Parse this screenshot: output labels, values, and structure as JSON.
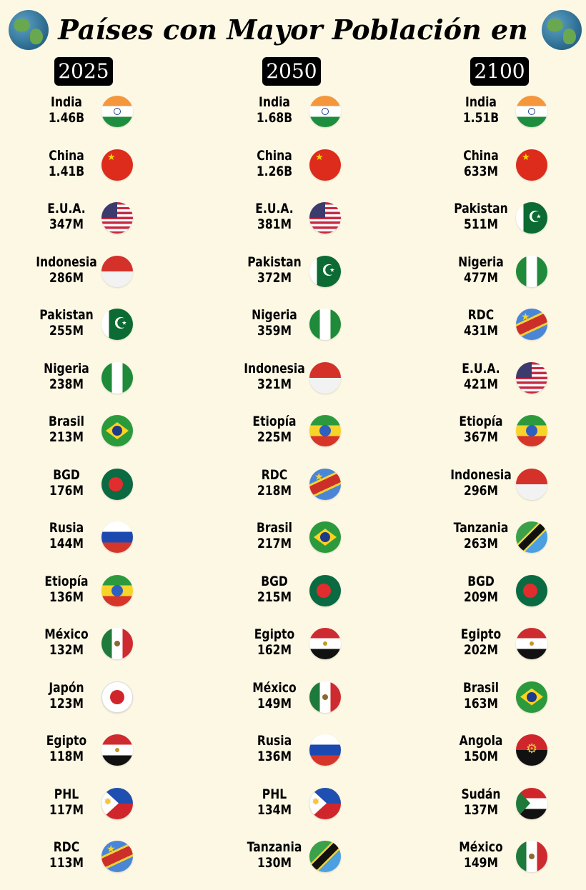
{
  "header": {
    "title": "Países con Mayor Población en",
    "icon": "earth-globe-icon"
  },
  "columns": [
    {
      "year": "2025",
      "items": [
        {
          "name": "India",
          "value": "1.46B",
          "flag": "india"
        },
        {
          "name": "China",
          "value": "1.41B",
          "flag": "china"
        },
        {
          "name": "E.U.A.",
          "value": "347M",
          "flag": "usa"
        },
        {
          "name": "Indonesia",
          "value": "286M",
          "flag": "indonesia"
        },
        {
          "name": "Pakistan",
          "value": "255M",
          "flag": "pakistan"
        },
        {
          "name": "Nigeria",
          "value": "238M",
          "flag": "nigeria"
        },
        {
          "name": "Brasil",
          "value": "213M",
          "flag": "brasil"
        },
        {
          "name": "BGD",
          "value": "176M",
          "flag": "bgd"
        },
        {
          "name": "Rusia",
          "value": "144M",
          "flag": "rusia"
        },
        {
          "name": "Etiopía",
          "value": "136M",
          "flag": "etiopia"
        },
        {
          "name": "México",
          "value": "132M",
          "flag": "mexico"
        },
        {
          "name": "Japón",
          "value": "123M",
          "flag": "japon"
        },
        {
          "name": "Egipto",
          "value": "118M",
          "flag": "egipto"
        },
        {
          "name": "PHL",
          "value": "117M",
          "flag": "phl"
        },
        {
          "name": "RDC",
          "value": "113M",
          "flag": "rdc"
        }
      ]
    },
    {
      "year": "2050",
      "items": [
        {
          "name": "India",
          "value": "1.68B",
          "flag": "india"
        },
        {
          "name": "China",
          "value": "1.26B",
          "flag": "china"
        },
        {
          "name": "E.U.A.",
          "value": "381M",
          "flag": "usa"
        },
        {
          "name": "Pakistan",
          "value": "372M",
          "flag": "pakistan"
        },
        {
          "name": "Nigeria",
          "value": "359M",
          "flag": "nigeria"
        },
        {
          "name": "Indonesia",
          "value": "321M",
          "flag": "indonesia"
        },
        {
          "name": "Etiopía",
          "value": "225M",
          "flag": "etiopia"
        },
        {
          "name": "RDC",
          "value": "218M",
          "flag": "rdc"
        },
        {
          "name": "Brasil",
          "value": "217M",
          "flag": "brasil"
        },
        {
          "name": "BGD",
          "value": "215M",
          "flag": "bgd"
        },
        {
          "name": "Egipto",
          "value": "162M",
          "flag": "egipto"
        },
        {
          "name": "México",
          "value": "149M",
          "flag": "mexico"
        },
        {
          "name": "Rusia",
          "value": "136M",
          "flag": "rusia"
        },
        {
          "name": "PHL",
          "value": "134M",
          "flag": "phl"
        },
        {
          "name": "Tanzania",
          "value": "130M",
          "flag": "tanzania"
        }
      ]
    },
    {
      "year": "2100",
      "items": [
        {
          "name": "India",
          "value": "1.51B",
          "flag": "india"
        },
        {
          "name": "China",
          "value": "633M",
          "flag": "china"
        },
        {
          "name": "Pakistan",
          "value": "511M",
          "flag": "pakistan"
        },
        {
          "name": "Nigeria",
          "value": "477M",
          "flag": "nigeria"
        },
        {
          "name": "RDC",
          "value": "431M",
          "flag": "rdc"
        },
        {
          "name": "E.U.A.",
          "value": "421M",
          "flag": "usa"
        },
        {
          "name": "Etiopía",
          "value": "367M",
          "flag": "etiopia"
        },
        {
          "name": "Indonesia",
          "value": "296M",
          "flag": "indonesia"
        },
        {
          "name": "Tanzania",
          "value": "263M",
          "flag": "tanzania"
        },
        {
          "name": "BGD",
          "value": "209M",
          "flag": "bgd"
        },
        {
          "name": "Egipto",
          "value": "202M",
          "flag": "egipto"
        },
        {
          "name": "Brasil",
          "value": "163M",
          "flag": "brasil"
        },
        {
          "name": "Angola",
          "value": "150M",
          "flag": "angola"
        },
        {
          "name": "Sudán",
          "value": "137M",
          "flag": "sudan"
        },
        {
          "name": "México",
          "value": "149M",
          "flag": "mexico"
        }
      ]
    }
  ]
}
